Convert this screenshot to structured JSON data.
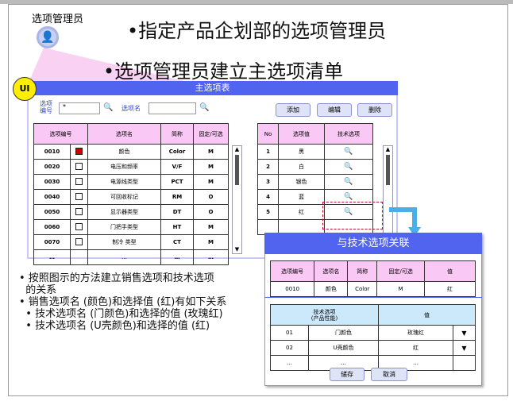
{
  "header": {
    "role_label": "选项管理员",
    "bullet1": "•指定产品企划部的选项管理员",
    "bullet2": "•选项管理员建立主选项清单",
    "ui_badge": "UI"
  },
  "window": {
    "title": "主选项表",
    "search": {
      "code_label": "选项编号",
      "code_value": "*",
      "name_label": "选项名",
      "name_value": ""
    },
    "buttons": {
      "add": "添加",
      "edit": "编辑",
      "delete": "删除"
    },
    "options_table": {
      "headers": [
        "选项编号",
        "选项名",
        "简称",
        "固定/可选"
      ],
      "rows": [
        [
          "0010",
          "颜色",
          "Color",
          "M",
          true
        ],
        [
          "0020",
          "电压和频率",
          "V/F",
          "M",
          false
        ],
        [
          "0030",
          "电源线类型",
          "PCT",
          "M",
          false
        ],
        [
          "0040",
          "可回收标记",
          "RM",
          "O",
          false
        ],
        [
          "0050",
          "显示器类型",
          "DT",
          "O",
          false
        ],
        [
          "0060",
          "门把手类型",
          "HT",
          "M",
          false
        ],
        [
          "0070",
          "制冷 类型",
          "CT",
          "M",
          false
        ],
        [
          "…",
          "…",
          "…",
          "…",
          null
        ]
      ]
    },
    "values_table": {
      "headers": [
        "No",
        "选项值",
        "技术选项"
      ],
      "rows": [
        [
          "1",
          "黑"
        ],
        [
          "2",
          "白"
        ],
        [
          "3",
          "银色"
        ],
        [
          "4",
          "蓝"
        ],
        [
          "5",
          "红"
        ],
        [
          "",
          ""
        ]
      ]
    }
  },
  "popup": {
    "title": "与技术选项关联",
    "top_table": {
      "headers": [
        "选项编号",
        "选项名",
        "简称",
        "固定/可选",
        "值"
      ],
      "row": [
        "0010",
        "颜色",
        "Color",
        "M",
        "红"
      ]
    },
    "tech_table": {
      "headers": [
        "技术选项\n(产品性能)",
        "值"
      ],
      "rows": [
        [
          "01",
          "门颜色",
          "玫瑰红"
        ],
        [
          "02",
          "U壳颜色",
          "红"
        ],
        [
          "…",
          "…",
          "…"
        ]
      ]
    },
    "save": "储存",
    "cancel": "取消"
  },
  "notes": [
    "• 按照图示的方法建立销售选项和技术选项",
    "  的关系",
    "• 销售选项名 (颜色)和选择值 (红)有如下关系",
    "  • 技术选项名 (门颜色)和选择的值 (玫瑰红)",
    "  • 技术选项名 (U壳颜色)和选择的值 (红)"
  ],
  "colors": {
    "title_bar": "#5064f0",
    "header_pink": "#f9c8f5",
    "header_blue": "#cce8fb",
    "badge": "#ffee00",
    "arrow": "#4aaee8"
  }
}
